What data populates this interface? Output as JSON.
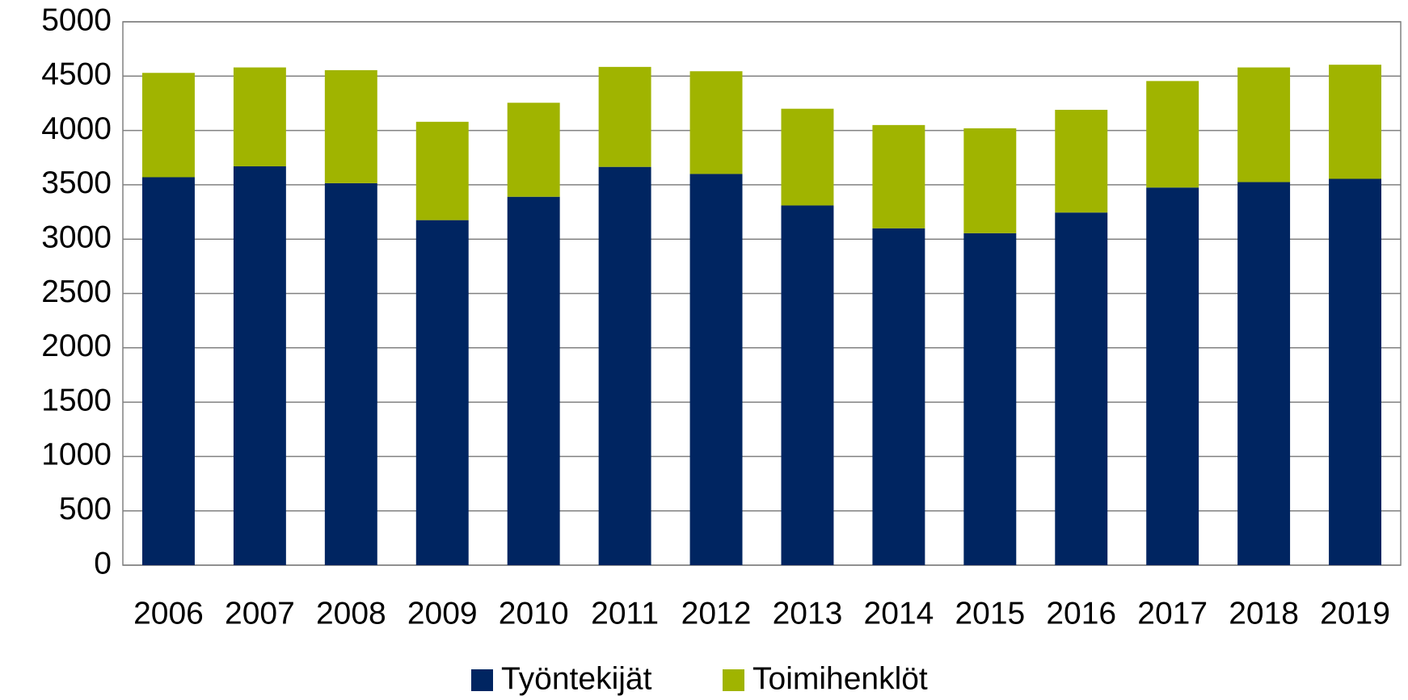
{
  "chart_data": {
    "type": "stacked_bar",
    "categories": [
      "2006",
      "2007",
      "2008",
      "2009",
      "2010",
      "2011",
      "2012",
      "2013",
      "2014",
      "2015",
      "2016",
      "2017",
      "2018",
      "2019"
    ],
    "series": [
      {
        "name": "Työntekijät",
        "color": "#002561",
        "values": [
          3570,
          3670,
          3515,
          3175,
          3390,
          3665,
          3600,
          3310,
          3100,
          3055,
          3245,
          3475,
          3525,
          3555
        ]
      },
      {
        "name": "Toimihenklöt",
        "color": "#a0b400",
        "values": [
          960,
          910,
          1040,
          905,
          865,
          920,
          945,
          890,
          950,
          965,
          945,
          980,
          1055,
          1050
        ]
      }
    ],
    "ylim": [
      0,
      5000
    ],
    "yticks": [
      0,
      500,
      1000,
      1500,
      2000,
      2500,
      3000,
      3500,
      4000,
      4500,
      5000
    ],
    "grid": true,
    "legend": "bottom"
  }
}
